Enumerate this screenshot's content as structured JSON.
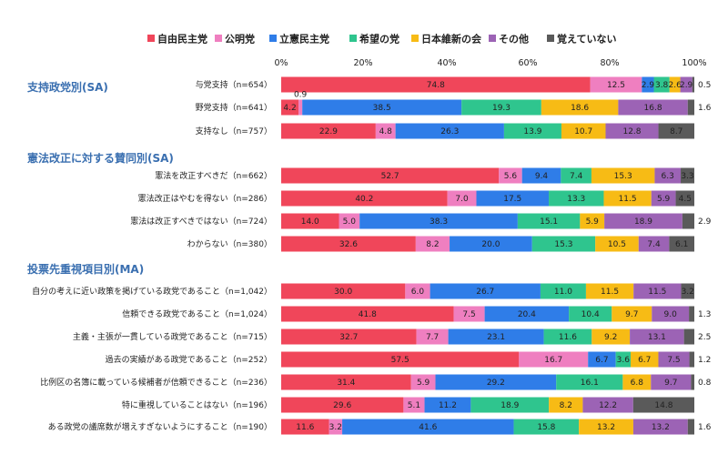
{
  "chart_data": {
    "type": "bar",
    "orientation": "horizontal-stacked-100",
    "legend": [
      {
        "name": "自由民主党",
        "color": "#f0465a"
      },
      {
        "name": "公明党",
        "color": "#ef7fc0"
      },
      {
        "name": "立憲民主党",
        "color": "#2f7de8"
      },
      {
        "name": "希望の党",
        "color": "#2fc58e"
      },
      {
        "name": "日本維新の会",
        "color": "#f7bb15"
      },
      {
        "name": "その他",
        "color": "#9c63b5"
      },
      {
        "name": "覚えていない",
        "color": "#5a5a5a"
      }
    ],
    "x_ticks": [
      "0%",
      "20%",
      "40%",
      "60%",
      "80%",
      "100%"
    ],
    "xlim": [
      0,
      100
    ],
    "groups": [
      {
        "title": "支持政党別(SA)",
        "rows": [
          {
            "label": "与党支持（n=654）",
            "values": [
              74.8,
              12.5,
              2.9,
              3.8,
              2.6,
              2.9,
              0.5
            ],
            "labels": [
              "74.8",
              "12.5",
              "2.9",
              "3.8",
              "2.6",
              "2.9",
              "0.5"
            ],
            "outside": [
              6
            ]
          },
          {
            "label": "野党支持（n=641）",
            "values": [
              4.2,
              0.9,
              38.5,
              19.3,
              18.6,
              16.8,
              1.6
            ],
            "labels": [
              "4.2",
              "0.9",
              "38.5",
              "19.3",
              "18.6",
              "16.8",
              "1.6"
            ],
            "above": [
              1
            ],
            "outside": [
              6
            ]
          },
          {
            "label": "支持なし（n=757）",
            "values": [
              22.9,
              4.8,
              26.3,
              13.9,
              10.7,
              12.8,
              8.7
            ],
            "labels": [
              "22.9",
              "4.8",
              "26.3",
              "13.9",
              "10.7",
              "12.8",
              "8.7"
            ]
          }
        ]
      },
      {
        "title": "憲法改正に対する賛同別(SA)",
        "rows": [
          {
            "label": "憲法を改正すべきだ（n=662）",
            "values": [
              52.7,
              5.6,
              9.4,
              7.4,
              15.3,
              6.3,
              3.3
            ],
            "labels": [
              "52.7",
              "5.6",
              "9.4",
              "7.4",
              "15.3",
              "6.3",
              "3.3"
            ]
          },
          {
            "label": "憲法改正はやむを得ない（n=286）",
            "values": [
              40.2,
              7.0,
              17.5,
              13.3,
              11.5,
              5.9,
              4.5
            ],
            "labels": [
              "40.2",
              "7.0",
              "17.5",
              "13.3",
              "11.5",
              "5.9",
              "4.5"
            ]
          },
          {
            "label": "憲法は改正すべきではない（n=724）",
            "values": [
              14.0,
              5.0,
              38.3,
              15.1,
              5.9,
              18.9,
              2.9
            ],
            "labels": [
              "14.0",
              "5.0",
              "38.3",
              "15.1",
              "5.9",
              "18.9",
              "2.9"
            ],
            "outside": [
              6
            ]
          },
          {
            "label": "わからない（n=380）",
            "values": [
              32.6,
              8.2,
              20.0,
              15.3,
              10.5,
              7.4,
              6.1
            ],
            "labels": [
              "32.6",
              "8.2",
              "20.0",
              "15.3",
              "10.5",
              "7.4",
              "6.1"
            ]
          }
        ]
      },
      {
        "title": "投票先重視項目別(MA)",
        "rows": [
          {
            "label": "自分の考えに近い政策を掲げている政党であること（n=1,042）",
            "values": [
              30.0,
              6.0,
              26.7,
              11.0,
              11.5,
              11.5,
              3.2
            ],
            "labels": [
              "30.0",
              "6.0",
              "26.7",
              "11.0",
              "11.5",
              "11.5",
              "3.2"
            ]
          },
          {
            "label": "信頼できる政党であること（n=1,024）",
            "values": [
              41.8,
              7.5,
              20.4,
              10.4,
              9.7,
              9.0,
              1.3
            ],
            "labels": [
              "41.8",
              "7.5",
              "20.4",
              "10.4",
              "9.7",
              "9.0",
              "1.3"
            ],
            "outside": [
              6
            ]
          },
          {
            "label": "主義・主張が一貫している政党であること（n=715）",
            "values": [
              32.7,
              7.7,
              23.1,
              11.6,
              9.2,
              13.1,
              2.5
            ],
            "labels": [
              "32.7",
              "7.7",
              "23.1",
              "11.6",
              "9.2",
              "13.1",
              "2.5"
            ],
            "outside": [
              6
            ]
          },
          {
            "label": "過去の実績がある政党であること（n=252）",
            "values": [
              57.5,
              16.7,
              6.7,
              3.6,
              6.7,
              7.5,
              1.2
            ],
            "labels": [
              "57.5",
              "16.7",
              "6.7",
              "3.6",
              "6.7",
              "7.5",
              "1.2"
            ],
            "outside": [
              6
            ]
          },
          {
            "label": "比例区の名簿に載っている候補者が信頼できること（n=236）",
            "values": [
              31.4,
              5.9,
              29.2,
              16.1,
              6.8,
              9.7,
              0.8
            ],
            "labels": [
              "31.4",
              "5.9",
              "29.2",
              "16.1",
              "6.8",
              "9.7",
              "0.8"
            ],
            "outside": [
              6
            ]
          },
          {
            "label": "特に重視していることはない（n=196）",
            "values": [
              29.6,
              5.1,
              11.2,
              18.9,
              8.2,
              12.2,
              14.8
            ],
            "labels": [
              "29.6",
              "5.1",
              "11.2",
              "18.9",
              "8.2",
              "12.2",
              "14.8"
            ]
          },
          {
            "label": "ある政党の議席数が増えすぎないようにすること（n=190）",
            "values": [
              11.6,
              3.2,
              41.6,
              15.8,
              13.2,
              13.2,
              1.6
            ],
            "labels": [
              "11.6",
              "3.2",
              "41.6",
              "15.8",
              "13.2",
              "13.2",
              "1.6"
            ],
            "outside": [
              6
            ]
          }
        ]
      }
    ]
  }
}
